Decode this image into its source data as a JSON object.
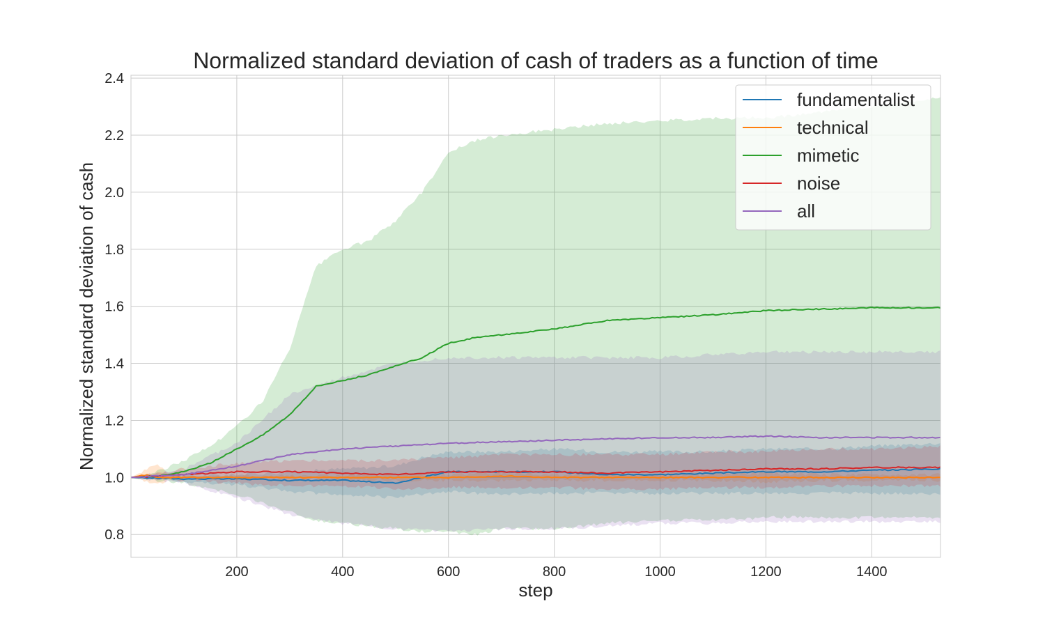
{
  "chart_data": {
    "type": "line",
    "title": "Normalized standard deviation of cash of traders as a function of time",
    "xlabel": "step",
    "ylabel": "Normalized standard deviation of cash",
    "xlim": [
      0,
      1530
    ],
    "ylim": [
      0.72,
      2.41
    ],
    "xticks": [
      200,
      400,
      600,
      800,
      1000,
      1200,
      1400
    ],
    "yticks": [
      0.8,
      1.0,
      1.2,
      1.4,
      1.6,
      1.8,
      2.0,
      2.2,
      2.4
    ],
    "grid": true,
    "legend_position": "top-right",
    "series": [
      {
        "name": "fundamentalist",
        "color": "#1f77b4",
        "x": [
          0,
          100,
          200,
          300,
          400,
          500,
          550,
          600,
          700,
          800,
          900,
          1000,
          1100,
          1200,
          1300,
          1400,
          1530
        ],
        "mean": [
          1.0,
          0.995,
          0.995,
          0.99,
          0.99,
          0.98,
          1.0,
          1.02,
          1.02,
          1.02,
          1.01,
          1.01,
          1.015,
          1.02,
          1.02,
          1.025,
          1.03
        ],
        "lower": [
          1.0,
          0.985,
          0.975,
          0.95,
          0.94,
          0.93,
          0.94,
          0.95,
          0.94,
          0.945,
          0.945,
          0.945,
          0.945,
          0.945,
          0.945,
          0.945,
          0.94
        ],
        "upper": [
          1.0,
          1.005,
          1.01,
          1.02,
          1.03,
          1.04,
          1.07,
          1.09,
          1.09,
          1.1,
          1.09,
          1.09,
          1.09,
          1.1,
          1.1,
          1.11,
          1.12
        ]
      },
      {
        "name": "technical",
        "color": "#ff7f0e",
        "x": [
          0,
          30,
          50,
          70,
          100,
          200,
          300,
          400,
          500,
          600,
          700,
          800,
          900,
          1000,
          1100,
          1200,
          1300,
          1400,
          1530
        ],
        "mean": [
          1.0,
          1.01,
          1.0,
          1.0,
          1.0,
          1.0,
          1.0,
          1.0,
          1.0,
          1.0,
          1.005,
          1.0,
          1.0,
          1.0,
          1.0,
          1.0,
          1.0,
          1.0,
          1.0
        ],
        "lower": [
          1.0,
          0.985,
          0.975,
          0.99,
          0.995,
          0.995,
          0.993,
          0.993,
          0.99,
          0.99,
          0.99,
          0.99,
          0.99,
          0.99,
          0.99,
          0.985,
          0.99,
          0.99,
          0.99
        ],
        "upper": [
          1.0,
          1.03,
          1.05,
          1.01,
          1.005,
          1.005,
          1.007,
          1.007,
          1.01,
          1.01,
          1.015,
          1.01,
          1.01,
          1.01,
          1.01,
          1.015,
          1.01,
          1.01,
          1.01
        ]
      },
      {
        "name": "mimetic",
        "color": "#2ca02c",
        "x": [
          0,
          50,
          100,
          150,
          200,
          250,
          300,
          350,
          400,
          450,
          500,
          550,
          600,
          650,
          700,
          800,
          900,
          1000,
          1100,
          1200,
          1300,
          1400,
          1530
        ],
        "mean": [
          1.0,
          1.005,
          1.02,
          1.05,
          1.1,
          1.15,
          1.22,
          1.32,
          1.34,
          1.36,
          1.39,
          1.42,
          1.47,
          1.49,
          1.5,
          1.52,
          1.55,
          1.56,
          1.57,
          1.585,
          1.59,
          1.595,
          1.595
        ],
        "lower": [
          1.0,
          0.99,
          0.98,
          0.96,
          0.94,
          0.91,
          0.88,
          0.85,
          0.84,
          0.83,
          0.82,
          0.81,
          0.81,
          0.8,
          0.82,
          0.82,
          0.84,
          0.85,
          0.85,
          0.86,
          0.86,
          0.86,
          0.86
        ],
        "upper": [
          1.0,
          1.02,
          1.06,
          1.11,
          1.18,
          1.27,
          1.45,
          1.74,
          1.8,
          1.83,
          1.9,
          2.0,
          2.14,
          2.18,
          2.2,
          2.22,
          2.24,
          2.25,
          2.26,
          2.26,
          2.28,
          2.3,
          2.33
        ]
      },
      {
        "name": "noise",
        "color": "#d62728",
        "x": [
          0,
          100,
          200,
          300,
          400,
          500,
          600,
          700,
          800,
          900,
          1000,
          1100,
          1200,
          1300,
          1400,
          1530
        ],
        "mean": [
          1.0,
          1.01,
          1.02,
          1.02,
          1.015,
          1.01,
          1.02,
          1.02,
          1.02,
          1.015,
          1.02,
          1.025,
          1.03,
          1.03,
          1.035,
          1.035
        ],
        "lower": [
          1.0,
          0.99,
          0.98,
          0.97,
          0.97,
          0.96,
          0.965,
          0.965,
          0.965,
          0.96,
          0.96,
          0.965,
          0.965,
          0.97,
          0.97,
          0.97
        ],
        "upper": [
          1.0,
          1.03,
          1.05,
          1.06,
          1.06,
          1.06,
          1.07,
          1.08,
          1.08,
          1.08,
          1.08,
          1.09,
          1.09,
          1.1,
          1.1,
          1.11
        ]
      },
      {
        "name": "all",
        "color": "#9467bd",
        "x": [
          0,
          100,
          200,
          300,
          400,
          500,
          600,
          700,
          800,
          900,
          1000,
          1100,
          1200,
          1300,
          1400,
          1530
        ],
        "mean": [
          1.0,
          1.01,
          1.04,
          1.08,
          1.1,
          1.11,
          1.12,
          1.125,
          1.13,
          1.135,
          1.14,
          1.14,
          1.145,
          1.14,
          1.14,
          1.14
        ],
        "lower": [
          1.0,
          0.98,
          0.93,
          0.87,
          0.84,
          0.82,
          0.81,
          0.82,
          0.82,
          0.83,
          0.84,
          0.84,
          0.845,
          0.845,
          0.845,
          0.845
        ],
        "upper": [
          1.0,
          1.03,
          1.12,
          1.29,
          1.35,
          1.4,
          1.42,
          1.42,
          1.42,
          1.42,
          1.42,
          1.43,
          1.44,
          1.44,
          1.44,
          1.44
        ]
      }
    ]
  }
}
